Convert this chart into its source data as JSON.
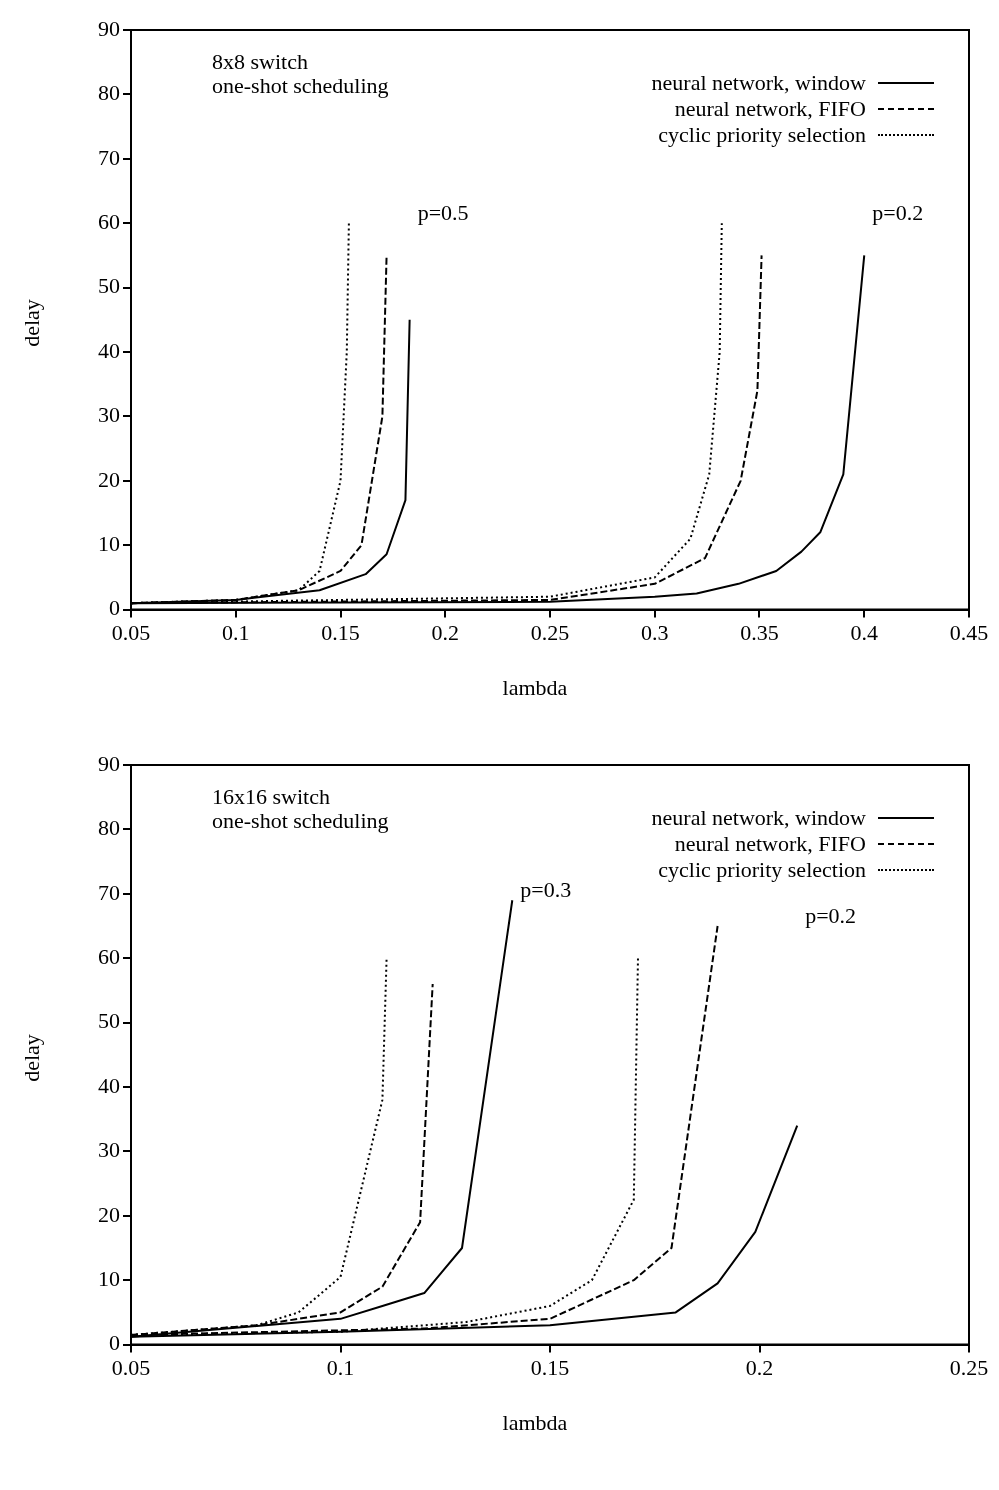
{
  "chart_data": [
    {
      "type": "line",
      "title": "8x8 switch\none-shot scheduling",
      "xlabel": "lambda",
      "ylabel": "delay",
      "xlim": [
        0.05,
        0.45
      ],
      "xticks": [
        0.05,
        0.1,
        0.15,
        0.2,
        0.25,
        0.3,
        0.35,
        0.4,
        0.45
      ],
      "ylim": [
        0,
        90
      ],
      "yticks": [
        0,
        10,
        20,
        30,
        40,
        50,
        60,
        70,
        80,
        90
      ],
      "grid": false,
      "legend": "top right",
      "marker": "none",
      "annotations": [
        "p=0.5",
        "p=0.2"
      ],
      "series": [
        {
          "name": "neural network, window",
          "color": "#000000",
          "line_style": "solid",
          "x": [
            0.05,
            0.1,
            0.14,
            0.162,
            0.172,
            0.181,
            0.183
          ],
          "values": [
            1,
            1.5,
            3,
            5.5,
            8.6,
            17,
            45
          ]
        },
        {
          "name": "neural network, FIFO",
          "color": "#000000",
          "line_style": "dashed",
          "x": [
            0.05,
            0.1,
            0.13,
            0.15,
            0.16,
            0.17,
            0.172
          ],
          "values": [
            1,
            1.5,
            3,
            6,
            10,
            30,
            55
          ]
        },
        {
          "name": "cyclic priority selection",
          "color": "#000000",
          "line_style": "dotted",
          "x": [
            0.05,
            0.1,
            0.13,
            0.14,
            0.15,
            0.153,
            0.154
          ],
          "values": [
            1,
            1.5,
            3,
            6,
            20,
            40,
            60
          ]
        },
        {
          "color": "#000000",
          "line_style": "solid",
          "x": [
            0.05,
            0.25,
            0.3,
            0.32,
            0.34,
            0.358,
            0.37,
            0.379,
            0.39,
            0.4
          ],
          "values": [
            1,
            1.2,
            2,
            2.5,
            4,
            6,
            9,
            12,
            21,
            55
          ]
        },
        {
          "color": "#000000",
          "line_style": "dashed",
          "x": [
            0.05,
            0.25,
            0.3,
            0.324,
            0.341,
            0.349,
            0.351
          ],
          "values": [
            1,
            1.5,
            4,
            8,
            20,
            34,
            55
          ]
        },
        {
          "color": "#000000",
          "line_style": "dotted",
          "x": [
            0.05,
            0.25,
            0.3,
            0.317,
            0.326,
            0.331,
            0.332
          ],
          "values": [
            1,
            2,
            5,
            11,
            21,
            40,
            60
          ]
        }
      ]
    },
    {
      "type": "line",
      "title": "16x16 switch\none-shot scheduling",
      "xlabel": "lambda",
      "ylabel": "delay",
      "xlim": [
        0.05,
        0.25
      ],
      "xticks": [
        0.05,
        0.1,
        0.15,
        0.2,
        0.25
      ],
      "ylim": [
        0,
        90
      ],
      "yticks": [
        0,
        10,
        20,
        30,
        40,
        50,
        60,
        70,
        80,
        90
      ],
      "grid": false,
      "legend": "top right",
      "marker": "none",
      "annotations": [
        "p=0.3",
        "p=0.2"
      ],
      "series": [
        {
          "name": "neural network, window",
          "color": "#000000",
          "line_style": "solid",
          "x": [
            0.05,
            0.1,
            0.11,
            0.12,
            0.129,
            0.141
          ],
          "values": [
            1.2,
            4,
            6,
            8,
            15,
            69
          ]
        },
        {
          "name": "neural network, FIFO",
          "color": "#000000",
          "line_style": "dashed",
          "x": [
            0.05,
            0.08,
            0.1,
            0.11,
            0.119,
            0.122
          ],
          "values": [
            1.5,
            3,
            5,
            9,
            19,
            56
          ]
        },
        {
          "name": "cyclic priority selection",
          "color": "#000000",
          "line_style": "dotted",
          "x": [
            0.05,
            0.08,
            0.09,
            0.1,
            0.11,
            0.111
          ],
          "values": [
            1.5,
            3,
            5,
            10.5,
            38,
            60
          ]
        },
        {
          "color": "#000000",
          "line_style": "solid",
          "x": [
            0.05,
            0.1,
            0.15,
            0.18,
            0.19,
            0.199,
            0.209
          ],
          "values": [
            1.2,
            2,
            3,
            5,
            9.5,
            17.5,
            34
          ]
        },
        {
          "color": "#000000",
          "line_style": "dashed",
          "x": [
            0.05,
            0.12,
            0.15,
            0.16,
            0.17,
            0.179,
            0.19
          ],
          "values": [
            1.5,
            2.5,
            4,
            7,
            10,
            15,
            65
          ]
        },
        {
          "color": "#000000",
          "line_style": "dotted",
          "x": [
            0.05,
            0.1,
            0.13,
            0.15,
            0.16,
            0.17,
            0.171
          ],
          "values": [
            1.5,
            2,
            3.5,
            6,
            10,
            22.5,
            60
          ]
        }
      ]
    }
  ]
}
